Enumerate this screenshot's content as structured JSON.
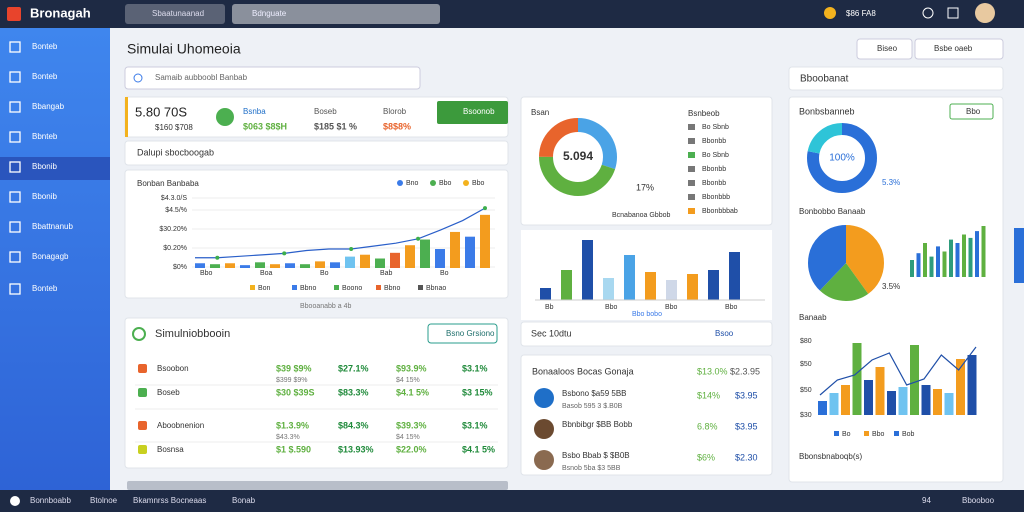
{
  "app": {
    "logo": "Bronagah",
    "search": "Sbaatunaanad",
    "dropdown": "Bdnguate",
    "balance": "$86 FA8"
  },
  "sidebar": [
    "Bonteb",
    "Bonteb",
    "Bbangab",
    "Bbnteb",
    "Bbonib",
    "Bbonib",
    "Bbattnanub",
    "Bonagagb",
    "Bonteb"
  ],
  "page_title": "Simulai Uhomeoia",
  "toolbar": [
    "Biseo",
    "Bsbe oaeb"
  ],
  "search_placeholder": "Samaib aubboobl Banbab",
  "stats": {
    "main": "5.80 70S",
    "main_sub": "$160 $708",
    "items": [
      {
        "label": "Bsnba",
        "value": "$063 $8$H"
      },
      {
        "label": "Boseb",
        "value": "$185 $1 %"
      },
      {
        "label": "Blorob",
        "value": "$8$8%"
      }
    ],
    "button": "Bsoonob"
  },
  "section": "Dalupi sbocboogab",
  "trend": {
    "title": "Bonban Banbaba",
    "legend": [
      "Bno",
      "Bbo",
      "Bbo"
    ],
    "ylabels": [
      "$4.3.0/S",
      "$4.5/%",
      "$30.20%",
      "$0.20%",
      "$0%"
    ],
    "xlabels": [
      "Bbo",
      "Boa",
      "Bo",
      "Bab",
      "Bo"
    ],
    "footer": [
      "Bon",
      "Bbno",
      "Boono",
      "Bbno",
      "Bbnao"
    ],
    "note": "Bbooanabb a 4b",
    "bar_values": [
      5,
      4,
      5,
      3,
      6,
      4,
      5,
      4,
      7,
      6,
      12,
      14,
      10,
      16,
      24,
      30,
      20,
      38,
      33,
      56
    ],
    "bar_colors": [
      "#3b7be8",
      "#4caf50",
      "#f39c1e",
      "#3b7be8",
      "#4caf50",
      "#f39c1e",
      "#3b7be8",
      "#4caf50",
      "#f39c1e",
      "#3b7be8",
      "#6fc3f0",
      "#f39c1e",
      "#4caf50",
      "#e8642c",
      "#f39c1e",
      "#4caf50",
      "#3b7be8",
      "#f39c1e",
      "#3b7be8",
      "#f39c1e"
    ],
    "line_values": [
      14,
      14,
      16,
      18,
      20,
      24,
      26,
      26,
      30,
      34,
      40,
      52,
      65,
      82
    ]
  },
  "donut": {
    "title": "Bsan",
    "center": "5.094",
    "side": "17%",
    "segments": [
      30,
      45,
      25
    ],
    "colors": [
      "#4aa3e6",
      "#5fb040",
      "#e8642c"
    ],
    "legend": [
      "Bsnbeob",
      "Bo Sbnb",
      "Bbonbb",
      "Bo Sbnb",
      "Bbonbb",
      "Bbonbb",
      "Bbonbbb",
      "Bbonbbbab"
    ],
    "legend_colors": [
      "#777",
      "#777",
      "#777",
      "#4caf50",
      "#777",
      "#777",
      "#777",
      "#f39c1e"
    ],
    "note": "Bcnabanoa Gbbob"
  },
  "mid_bars": {
    "values": [
      12,
      30,
      60,
      22,
      45,
      28,
      20,
      26,
      30,
      48
    ],
    "colors": [
      "#1f4fa8",
      "#5fb040",
      "#1f4fa8",
      "#a8d8f0",
      "#4aa3e6",
      "#f39c1e",
      "#cfd8e8",
      "#f39c1e",
      "#1f4fa8",
      "#1f4fa8"
    ],
    "labels": [
      "Bb",
      "Bbo",
      "Bbo",
      "Bbo"
    ],
    "footer": "Bbo bobo"
  },
  "sec_header": {
    "title": "Sec 10dtu",
    "action": "Bsoo"
  },
  "table": {
    "title": "Simulniobbooin",
    "button": "Bsno Grsiono",
    "rows": [
      {
        "name": "Bsoobon",
        "icon": "#e8642c",
        "values": [
          "$39 $9%",
          "$27.1%",
          "$93.9%",
          "$3.1%"
        ],
        "subs": [
          "$399 $9%",
          "",
          "$4 15%",
          ""
        ]
      },
      {
        "name": "Boseb",
        "icon": "#4caf50",
        "values": [
          "$30 $39S",
          "$83.3%",
          "$4.1 5%",
          "$3 15%"
        ],
        "subs": [
          "",
          "",
          "",
          ""
        ]
      },
      {
        "name": "Aboobnenion",
        "icon": "#e8642c",
        "values": [
          "$1.3.9%",
          "$84.3%",
          "$39.3%",
          "$3.1%"
        ],
        "subs": [
          "$43.3%",
          "",
          "$4 15%",
          ""
        ]
      },
      {
        "name": "Bosnsa",
        "icon": "#c8d020",
        "values": [
          "$1 $.590",
          "$13.93%",
          "$22.0%",
          "$4.1 5%"
        ],
        "subs": [
          "",
          "",
          "",
          ""
        ]
      }
    ]
  },
  "list": {
    "title": "Bonaaloos Bocas Gonaja",
    "head": [
      "$13.0%",
      "$2.3.95"
    ],
    "rows": [
      {
        "name": "Bsbono $a59 5BB",
        "sub": "Basob 595 3 $.B0B",
        "values": [
          "$14%",
          "$3.95"
        ],
        "color": "#1f6fc8"
      },
      {
        "name": "Bbnbibgr $BB Bobb",
        "sub": "",
        "values": [
          "6.8%",
          "$3.95"
        ],
        "color": "#6b4a30"
      },
      {
        "name": "Bsbo Bbab $ $B0B",
        "sub": "Bsnob 5ba $3 5BB",
        "values": [
          "$6%",
          "$2.30"
        ],
        "color": "#8a6a50"
      }
    ]
  },
  "right": {
    "title": "Bboobanat",
    "p1": "Bonbsbanneb",
    "p1_button": "Bbo",
    "donut": [
      78,
      22
    ],
    "donut_colors": [
      "#2a6fd8",
      "#2ec4d8"
    ],
    "donut_center": "100%",
    "donut_side": "5.3%",
    "p2": "Bonbobbo Banaab",
    "pie": [
      40,
      22,
      38
    ],
    "pie_colors": [
      "#f39c1e",
      "#5fb040",
      "#2a6fd8"
    ],
    "pie_side": "3.5%",
    "small_bars": [
      20,
      28,
      40,
      24,
      36,
      30,
      44,
      40,
      50,
      46,
      54,
      60
    ],
    "p3": "Banaab",
    "yl": [
      "$30",
      "$50",
      "$50",
      "$80"
    ],
    "big_bars": [
      14,
      22,
      30,
      72,
      35,
      48,
      24,
      28,
      70,
      30,
      26,
      22,
      56,
      60
    ],
    "big_colors": [
      "#2a6fd8",
      "#6fc3f0",
      "#f39c1e",
      "#5fb040",
      "#1f4fa8",
      "#f39c1e",
      "#1f4fa8",
      "#6fc3f0",
      "#5fb040",
      "#1f4fa8",
      "#f39c1e",
      "#6fc3f0",
      "#f39c1e",
      "#1f4fa8"
    ],
    "big_line": [
      20,
      35,
      40,
      55,
      62,
      30,
      36,
      60,
      45,
      68
    ],
    "legend": [
      "Bo",
      "Bbo",
      "Bob"
    ],
    "footer": "Bbonsbnaboqb(s)"
  },
  "status": [
    "Bonnboabb",
    "Btolnoe",
    "Bkamnrss Bocneaas",
    "Bonab",
    "94",
    "Bbooboo"
  ]
}
